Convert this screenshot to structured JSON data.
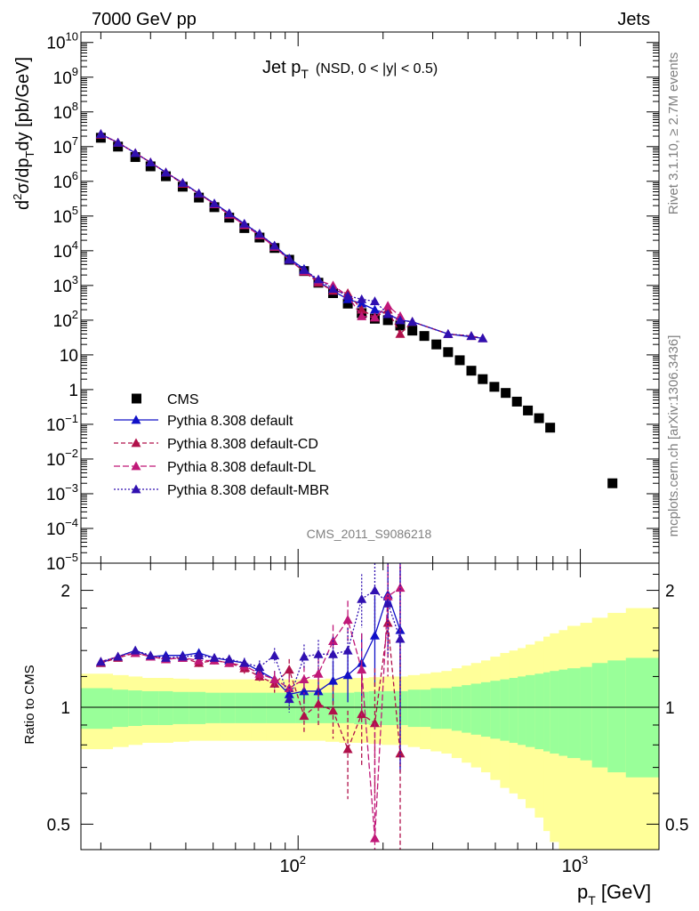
{
  "header": {
    "left": "7000 GeV pp",
    "right": "Jets"
  },
  "side": {
    "rivet": "Rivet 3.1.10, ≥ 2.7M events",
    "mcplots": "mcplots.cern.ch [arXiv:1306.3436]"
  },
  "watermark": "CMS_2011_S9086218",
  "colors": {
    "cms": "#000000",
    "default": "#1010c8",
    "cd": "#b0104a",
    "dl": "#c01878",
    "mbr": "#3010b0",
    "band_inner": "#99ff99",
    "band_outer": "#ffff99"
  },
  "chart_data": [
    {
      "type": "scatter",
      "title_main": "Jet p",
      "title_sub": "T",
      "title_rest": "(NSD,   0 < |y| < 0.5)",
      "ylabel": "d²σ/dp_T dy [pb/GeV]",
      "xscale": "log",
      "yscale": "log",
      "xlim": [
        17,
        1900
      ],
      "ylim": [
        1e-05,
        20000000000.0
      ],
      "y_ticks": [
        {
          "v": 10000000000.0,
          "b": "10",
          "e": "10"
        },
        {
          "v": 1000000000.0,
          "b": "10",
          "e": "9"
        },
        {
          "v": 100000000.0,
          "b": "10",
          "e": "8"
        },
        {
          "v": 10000000.0,
          "b": "10",
          "e": "7"
        },
        {
          "v": 1000000.0,
          "b": "10",
          "e": "6"
        },
        {
          "v": 100000.0,
          "b": "10",
          "e": "5"
        },
        {
          "v": 10000.0,
          "b": "10",
          "e": "4"
        },
        {
          "v": 1000.0,
          "b": "10",
          "e": "3"
        },
        {
          "v": 100,
          "b": "10",
          "e": "2"
        },
        {
          "v": 10,
          "b": "10",
          "e": ""
        },
        {
          "v": 1,
          "b": "1",
          "e": ""
        },
        {
          "v": 0.1,
          "b": "10",
          "e": "−1"
        },
        {
          "v": 0.01,
          "b": "10",
          "e": "−2"
        },
        {
          "v": 0.001,
          "b": "10",
          "e": "−3"
        },
        {
          "v": 0.0001,
          "b": "10",
          "e": "−4"
        },
        {
          "v": 1e-05,
          "b": "10",
          "e": "−5"
        }
      ],
      "legend_position": "bottom-left",
      "series": [
        {
          "name": "CMS",
          "marker": "square",
          "x": [
            20,
            23,
            26.5,
            30,
            34,
            39,
            44.5,
            50.5,
            57,
            64.5,
            73,
            82.5,
            93,
            105,
            118,
            133,
            150,
            168,
            187,
            208,
            230,
            254,
            280,
            309,
            340,
            374,
            411,
            451,
            496,
            544,
            596,
            652,
            714,
            782,
            1300
          ],
          "y": [
            18000000.0,
            10000000.0,
            5000000.0,
            2700000.0,
            1400000.0,
            700000.0,
            340000.0,
            180000.0,
            90000.0,
            45000.0,
            24000.0,
            12000.0,
            5500.0,
            2600.0,
            1200.0,
            600.0,
            300.0,
            160.0,
            110.0,
            100.0,
            70.0,
            50.0,
            35.0,
            20.0,
            12.0,
            7.0,
            3.5,
            2.0,
            1.2,
            0.8,
            0.45,
            0.25,
            0.15,
            0.08,
            0.002
          ]
        },
        {
          "name": "Pythia 8.308 default",
          "marker": "triangle",
          "x": [
            20,
            23,
            26.5,
            30,
            34,
            39,
            44.5,
            50.5,
            57,
            64.5,
            73,
            82.5,
            93,
            105,
            118,
            133,
            150,
            168,
            187,
            208,
            230,
            254,
            340,
            451
          ],
          "y": [
            23000000.0,
            13000000.0,
            6500000.0,
            3500000.0,
            1800000.0,
            900000.0,
            450000.0,
            230000.0,
            120000.0,
            60000.0,
            30000.0,
            14000.0,
            6000.0,
            3000.0,
            1300.0,
            700.0,
            400.0,
            300.0,
            200.0,
            150.0,
            100.0,
            90.0,
            40.0,
            30.0
          ]
        },
        {
          "name": "Pythia 8.308 default-CD",
          "marker": "triangle",
          "x": [
            20,
            23,
            26.5,
            30,
            34,
            39,
            44.5,
            50.5,
            57,
            64.5,
            73,
            82.5,
            93,
            105,
            118,
            133,
            150,
            168,
            187,
            208,
            230,
            254,
            340,
            411,
            451
          ],
          "y": [
            22000000.0,
            13000000.0,
            6500000.0,
            3500000.0,
            1800000.0,
            850000.0,
            440000.0,
            220000.0,
            110000.0,
            55000.0,
            28000.0,
            13000.0,
            5500.0,
            2500.0,
            1200.0,
            700.0,
            600.0,
            200.0,
            120.0,
            200.0,
            40.0,
            90.0,
            40.0,
            35.0,
            30.0
          ]
        },
        {
          "name": "Pythia 8.308 default-DL",
          "marker": "triangle",
          "x": [
            20,
            23,
            26.5,
            30,
            34,
            39,
            44.5,
            50.5,
            57,
            64.5,
            73,
            82.5,
            93,
            105,
            118,
            133,
            150,
            168,
            187,
            208,
            230
          ],
          "y": [
            23000000.0,
            13000000.0,
            6500000.0,
            3500000.0,
            1800000.0,
            900000.0,
            440000.0,
            220000.0,
            110000.0,
            55000.0,
            28000.0,
            13000.0,
            5500.0,
            2600.0,
            1400.0,
            1000.0,
            500.0,
            130.0,
            120.0,
            260.0,
            130.0
          ]
        },
        {
          "name": "Pythia 8.308 default-MBR",
          "marker": "triangle",
          "x": [
            20,
            23,
            26.5,
            30,
            34,
            39,
            44.5,
            50.5,
            57,
            64.5,
            73,
            82.5,
            93,
            105,
            118,
            133,
            150,
            168,
            187,
            208,
            230,
            254,
            340,
            411,
            451
          ],
          "y": [
            23000000.0,
            13000000.0,
            6500000.0,
            3500000.0,
            1800000.0,
            900000.0,
            450000.0,
            230000.0,
            120000.0,
            60000.0,
            31000.0,
            14000.0,
            5500.0,
            2800.0,
            1500.0,
            800.0,
            500.0,
            400.0,
            350.0,
            150.0,
            100.0,
            90.0,
            40.0,
            35.0,
            30.0
          ]
        }
      ]
    },
    {
      "type": "line",
      "ylabel": "Ratio to CMS",
      "xlabel_main": "p",
      "xlabel_sub": "T",
      "xlabel_rest": " [GeV]",
      "xscale": "log",
      "yscale": "log",
      "xlim": [
        17,
        1900
      ],
      "ylim": [
        0.43,
        2.35
      ],
      "y_ticks": [
        {
          "v": 2,
          "label": "2"
        },
        {
          "v": 1,
          "label": "1"
        },
        {
          "v": 0.5,
          "label": "0.5"
        }
      ],
      "x_tick_labels": [
        {
          "v": 100,
          "b": "10",
          "e": "2"
        },
        {
          "v": 1000,
          "b": "10",
          "e": "3"
        }
      ],
      "bins": [
        17,
        22,
        25,
        28,
        32,
        36,
        41,
        47,
        53,
        60,
        68,
        77,
        87,
        98,
        110,
        125,
        140,
        158,
        178,
        198,
        220,
        245,
        270,
        295,
        322,
        350,
        380,
        410,
        445,
        480,
        520,
        560,
        600,
        640,
        690,
        740,
        780,
        840,
        900,
        1000,
        1100,
        1250,
        1450,
        1900
      ],
      "band_inner": [
        0.12,
        0.11,
        0.105,
        0.1,
        0.1,
        0.095,
        0.095,
        0.09,
        0.09,
        0.09,
        0.09,
        0.09,
        0.09,
        0.09,
        0.09,
        0.09,
        0.09,
        0.095,
        0.1,
        0.1,
        0.1,
        0.11,
        0.11,
        0.12,
        0.12,
        0.13,
        0.14,
        0.15,
        0.16,
        0.17,
        0.18,
        0.19,
        0.2,
        0.21,
        0.22,
        0.23,
        0.24,
        0.25,
        0.26,
        0.27,
        0.3,
        0.32,
        0.34
      ],
      "band_outer": [
        0.22,
        0.21,
        0.2,
        0.19,
        0.19,
        0.185,
        0.18,
        0.18,
        0.18,
        0.18,
        0.18,
        0.18,
        0.18,
        0.18,
        0.18,
        0.185,
        0.19,
        0.19,
        0.195,
        0.2,
        0.2,
        0.21,
        0.22,
        0.23,
        0.24,
        0.26,
        0.28,
        0.3,
        0.32,
        0.35,
        0.38,
        0.4,
        0.42,
        0.45,
        0.48,
        0.52,
        0.55,
        0.58,
        0.62,
        0.65,
        0.7,
        0.75,
        0.8
      ],
      "series": [
        {
          "name": "Pythia 8.308 default",
          "x": [
            20,
            23,
            26.5,
            30,
            34,
            39,
            44.5,
            50.5,
            57,
            64.5,
            73,
            82.5,
            93,
            105,
            118,
            133,
            150,
            168,
            187,
            208,
            230
          ],
          "y": [
            1.3,
            1.35,
            1.4,
            1.35,
            1.36,
            1.36,
            1.38,
            1.34,
            1.32,
            1.3,
            1.24,
            1.18,
            1.08,
            1.1,
            1.1,
            1.17,
            1.21,
            1.3,
            1.53,
            1.95,
            1.58
          ],
          "err": [
            0.02,
            0.02,
            0.02,
            0.02,
            0.02,
            0.02,
            0.03,
            0.03,
            0.03,
            0.04,
            0.05,
            0.06,
            0.06,
            0.08,
            0.1,
            0.15,
            0.18,
            0.25,
            0.4,
            0.55,
            0.9
          ]
        },
        {
          "name": "Pythia 8.308 default-CD",
          "x": [
            20,
            23,
            26.5,
            30,
            34,
            39,
            44.5,
            50.5,
            57,
            64.5,
            73,
            82.5,
            93,
            105,
            118,
            133,
            150,
            168,
            187,
            208,
            230
          ],
          "y": [
            1.3,
            1.34,
            1.38,
            1.35,
            1.33,
            1.34,
            1.3,
            1.32,
            1.3,
            1.26,
            1.2,
            1.15,
            1.25,
            0.95,
            1.02,
            0.98,
            0.78,
            0.96,
            0.91,
            1.65,
            0.76
          ],
          "err": [
            0.02,
            0.02,
            0.02,
            0.02,
            0.02,
            0.02,
            0.03,
            0.03,
            0.03,
            0.04,
            0.05,
            0.06,
            0.08,
            0.1,
            0.12,
            0.15,
            0.2,
            0.25,
            0.35,
            0.45,
            0.6
          ]
        },
        {
          "name": "Pythia 8.308 default-DL",
          "x": [
            20,
            23,
            26.5,
            30,
            34,
            39,
            44.5,
            50.5,
            57,
            64.5,
            73,
            82.5,
            93,
            105,
            118,
            133,
            150,
            168,
            187,
            208,
            230
          ],
          "y": [
            1.31,
            1.35,
            1.38,
            1.35,
            1.33,
            1.34,
            1.32,
            1.32,
            1.3,
            1.28,
            1.22,
            1.18,
            1.12,
            1.18,
            1.22,
            1.48,
            1.68,
            1.25,
            0.46,
            1.93,
            2.03
          ],
          "err": [
            0.02,
            0.02,
            0.02,
            0.02,
            0.02,
            0.02,
            0.03,
            0.03,
            0.03,
            0.04,
            0.05,
            0.06,
            0.08,
            0.1,
            0.12,
            0.15,
            0.2,
            0.3,
            0.45,
            0.55,
            0.7
          ]
        },
        {
          "name": "Pythia 8.308 default-MBR",
          "x": [
            20,
            23,
            26.5,
            30,
            34,
            39,
            44.5,
            50.5,
            57,
            64.5,
            73,
            82.5,
            93,
            105,
            118,
            133,
            150,
            168,
            187,
            208,
            230
          ],
          "y": [
            1.31,
            1.35,
            1.4,
            1.36,
            1.34,
            1.35,
            1.36,
            1.34,
            1.33,
            1.3,
            1.27,
            1.36,
            1.05,
            1.35,
            1.37,
            1.37,
            1.4,
            1.9,
            2.0,
            1.85,
            1.5
          ],
          "err": [
            0.02,
            0.02,
            0.02,
            0.02,
            0.02,
            0.02,
            0.03,
            0.03,
            0.03,
            0.04,
            0.05,
            0.06,
            0.08,
            0.1,
            0.12,
            0.15,
            0.2,
            0.3,
            0.4,
            0.5,
            0.8
          ]
        }
      ]
    }
  ]
}
